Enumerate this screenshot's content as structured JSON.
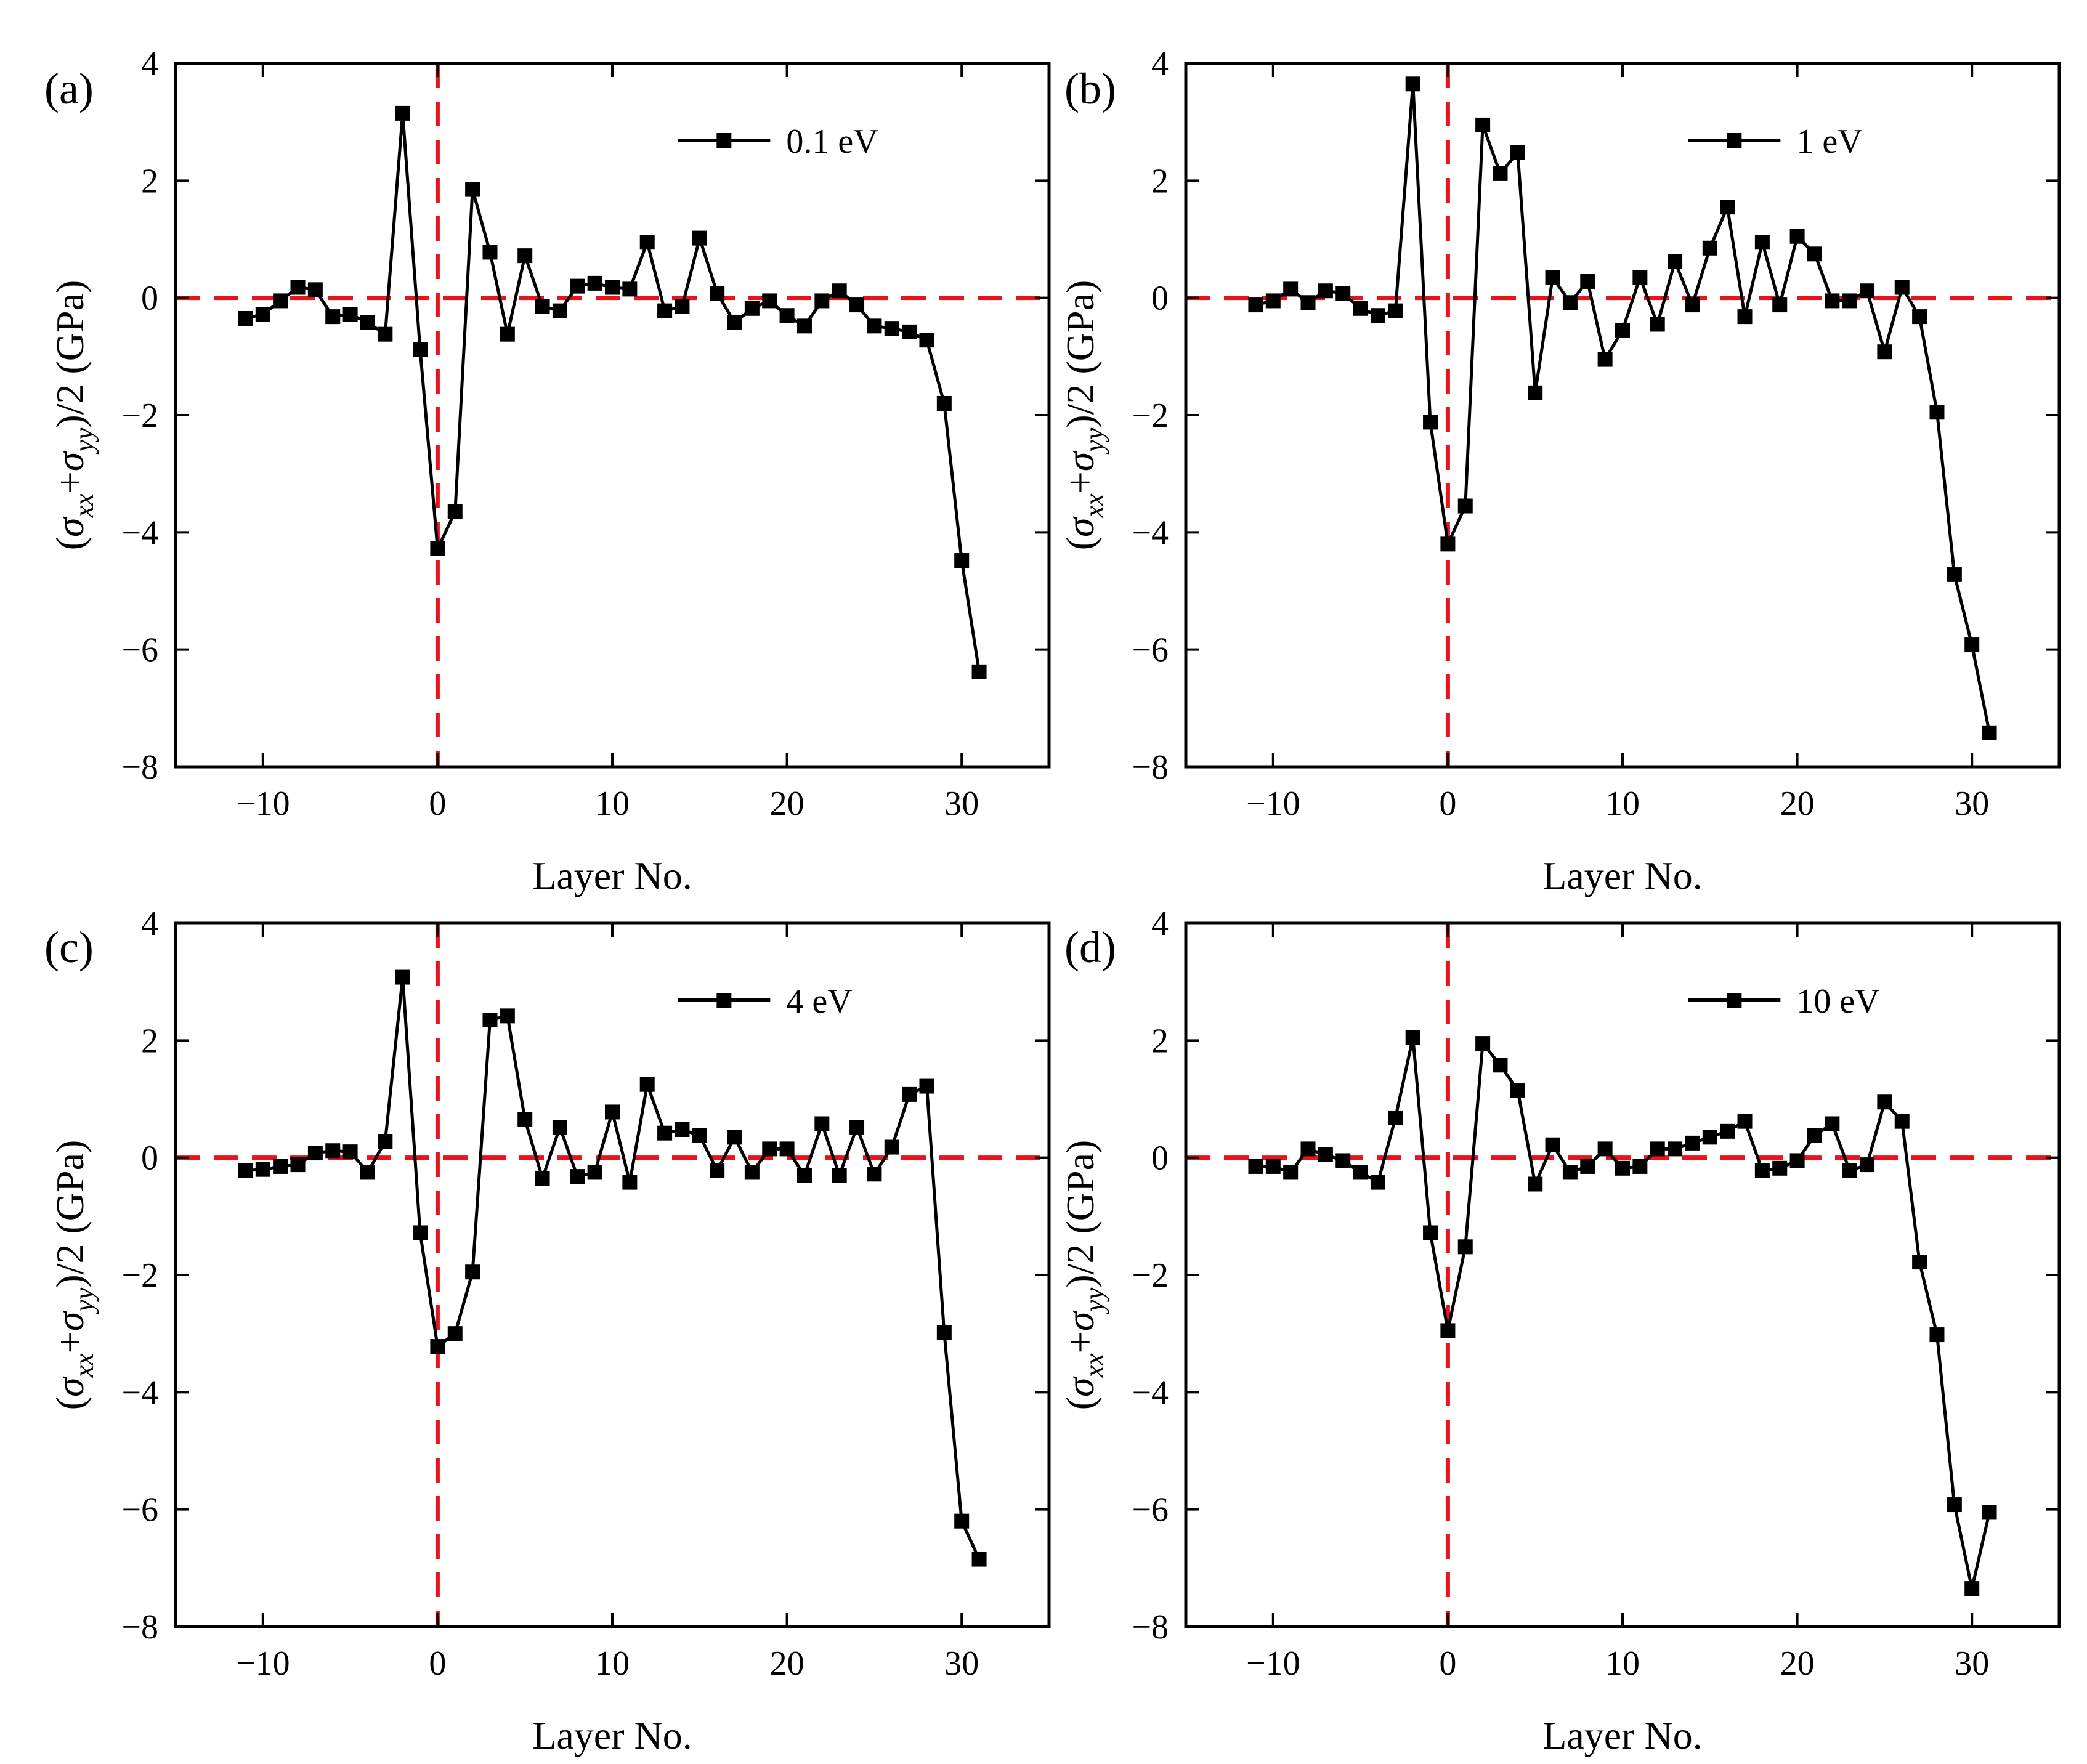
{
  "chart_data": [
    {
      "type": "line",
      "panel_label": "(a)",
      "xlabel": "Layer No.",
      "ylabel": {
        "prefix": "(",
        "sigma1": "σ",
        "sub1": "xx",
        "plus": "+",
        "sigma2": "σ",
        "sub2": "yy",
        "suffix": ")/2 (GPa)"
      },
      "xlim": [
        -15,
        35
      ],
      "ylim": [
        -8,
        4
      ],
      "xticks": [
        -10,
        0,
        10,
        20,
        30
      ],
      "yticks": [
        -8,
        -6,
        -4,
        -2,
        0,
        2,
        4
      ],
      "reference_lines": {
        "y": 0,
        "x": 0,
        "color": "#e8141b",
        "style": "dashed"
      },
      "legend_position": "top-right",
      "series": [
        {
          "name": "0.1 eV",
          "color": "#000000",
          "marker": "square",
          "x": [
            -11,
            -10,
            -9,
            -8,
            -7,
            -6,
            -5,
            -4,
            -3,
            -2,
            -1,
            0,
            1,
            2,
            3,
            4,
            5,
            6,
            7,
            8,
            9,
            10,
            11,
            12,
            13,
            14,
            15,
            16,
            17,
            18,
            19,
            20,
            21,
            22,
            23,
            24,
            25,
            26,
            27,
            28,
            29,
            30,
            31
          ],
          "y": [
            -0.35,
            -0.28,
            -0.05,
            0.18,
            0.14,
            -0.32,
            -0.28,
            -0.42,
            -0.62,
            3.15,
            -0.88,
            -4.28,
            -3.65,
            1.85,
            0.78,
            -0.62,
            0.72,
            -0.15,
            -0.22,
            0.2,
            0.25,
            0.18,
            0.15,
            0.95,
            -0.22,
            -0.15,
            1.02,
            0.08,
            -0.42,
            -0.18,
            -0.05,
            -0.3,
            -0.48,
            -0.05,
            0.12,
            -0.12,
            -0.48,
            -0.52,
            -0.58,
            -0.72,
            -1.8,
            -4.48,
            -6.38
          ]
        }
      ]
    },
    {
      "type": "line",
      "panel_label": "(b)",
      "xlabel": "Layer No.",
      "ylabel": {
        "prefix": "(",
        "sigma1": "σ",
        "sub1": "xx",
        "plus": "+",
        "sigma2": "σ",
        "sub2": "yy",
        "suffix": ")/2 (GPa)"
      },
      "xlim": [
        -15,
        35
      ],
      "ylim": [
        -8,
        4
      ],
      "xticks": [
        -10,
        0,
        10,
        20,
        30
      ],
      "yticks": [
        -8,
        -6,
        -4,
        -2,
        0,
        2,
        4
      ],
      "reference_lines": {
        "y": 0,
        "x": 0,
        "color": "#e8141b",
        "style": "dashed"
      },
      "legend_position": "top-right",
      "series": [
        {
          "name": "1 eV",
          "color": "#000000",
          "marker": "square",
          "x": [
            -11,
            -10,
            -9,
            -8,
            -7,
            -6,
            -5,
            -4,
            -3,
            -2,
            -1,
            0,
            1,
            2,
            3,
            4,
            5,
            6,
            7,
            8,
            9,
            10,
            11,
            12,
            13,
            14,
            15,
            16,
            17,
            18,
            19,
            20,
            21,
            22,
            23,
            24,
            25,
            26,
            27,
            28,
            29,
            30,
            31
          ],
          "y": [
            -0.12,
            -0.05,
            0.15,
            -0.08,
            0.12,
            0.08,
            -0.18,
            -0.3,
            -0.22,
            3.65,
            -2.12,
            -4.2,
            -3.55,
            2.95,
            2.12,
            2.48,
            -1.62,
            0.35,
            -0.08,
            0.28,
            -1.05,
            -0.55,
            0.35,
            -0.45,
            0.62,
            -0.12,
            0.85,
            1.55,
            -0.32,
            0.95,
            -0.12,
            1.05,
            0.75,
            -0.05,
            -0.05,
            0.12,
            -0.92,
            0.18,
            -0.32,
            -1.95,
            -4.72,
            -5.92,
            -7.42
          ]
        }
      ]
    },
    {
      "type": "line",
      "panel_label": "(c)",
      "xlabel": "Layer No.",
      "ylabel": {
        "prefix": "(",
        "sigma1": "σ",
        "sub1": "xx",
        "plus": "+",
        "sigma2": "σ",
        "sub2": "yy",
        "suffix": ")/2 (GPa)"
      },
      "xlim": [
        -15,
        35
      ],
      "ylim": [
        -8,
        4
      ],
      "xticks": [
        -10,
        0,
        10,
        20,
        30
      ],
      "yticks": [
        -8,
        -6,
        -4,
        -2,
        0,
        2,
        4
      ],
      "reference_lines": {
        "y": 0,
        "x": 0,
        "color": "#e8141b",
        "style": "dashed"
      },
      "legend_position": "top-right",
      "series": [
        {
          "name": "4 eV",
          "color": "#000000",
          "marker": "square",
          "x": [
            -11,
            -10,
            -9,
            -8,
            -7,
            -6,
            -5,
            -4,
            -3,
            -2,
            -1,
            0,
            1,
            2,
            3,
            4,
            5,
            6,
            7,
            8,
            9,
            10,
            11,
            12,
            13,
            14,
            15,
            16,
            17,
            18,
            19,
            20,
            21,
            22,
            23,
            24,
            25,
            26,
            27,
            28,
            29,
            30,
            31
          ],
          "y": [
            -0.22,
            -0.2,
            -0.15,
            -0.12,
            0.08,
            0.12,
            0.1,
            -0.25,
            0.28,
            3.08,
            -1.28,
            -3.22,
            -3.0,
            -1.95,
            2.35,
            2.42,
            0.65,
            -0.35,
            0.52,
            -0.32,
            -0.25,
            0.78,
            -0.42,
            1.25,
            0.42,
            0.48,
            0.38,
            -0.22,
            0.35,
            -0.25,
            0.15,
            0.15,
            -0.3,
            0.58,
            -0.3,
            0.52,
            -0.28,
            0.18,
            1.08,
            1.22,
            -2.98,
            -6.2,
            -6.85
          ]
        }
      ]
    },
    {
      "type": "line",
      "panel_label": "(d)",
      "xlabel": "Layer No.",
      "ylabel": {
        "prefix": "(",
        "sigma1": "σ",
        "sub1": "xx",
        "plus": "+",
        "sigma2": "σ",
        "sub2": "yy",
        "suffix": ")/2 (GPa)"
      },
      "xlim": [
        -15,
        35
      ],
      "ylim": [
        -8,
        4
      ],
      "xticks": [
        -10,
        0,
        10,
        20,
        30
      ],
      "yticks": [
        -8,
        -6,
        -4,
        -2,
        0,
        2,
        4
      ],
      "reference_lines": {
        "y": 0,
        "x": 0,
        "color": "#e8141b",
        "style": "dashed"
      },
      "legend_position": "top-right",
      "series": [
        {
          "name": "10 eV",
          "color": "#000000",
          "marker": "square",
          "x": [
            -11,
            -10,
            -9,
            -8,
            -7,
            -6,
            -5,
            -4,
            -3,
            -2,
            -1,
            0,
            1,
            2,
            3,
            4,
            5,
            6,
            7,
            8,
            9,
            10,
            11,
            12,
            13,
            14,
            15,
            16,
            17,
            18,
            19,
            20,
            21,
            22,
            23,
            24,
            25,
            26,
            27,
            28,
            29,
            30,
            31
          ],
          "y": [
            -0.15,
            -0.15,
            -0.25,
            0.15,
            0.05,
            -0.05,
            -0.25,
            -0.42,
            0.68,
            2.05,
            -1.28,
            -2.95,
            -1.52,
            1.95,
            1.58,
            1.15,
            -0.45,
            0.22,
            -0.25,
            -0.15,
            0.15,
            -0.18,
            -0.15,
            0.15,
            0.15,
            0.25,
            0.35,
            0.45,
            0.62,
            -0.22,
            -0.18,
            -0.05,
            0.38,
            0.58,
            -0.22,
            -0.12,
            0.95,
            0.62,
            -1.78,
            -3.02,
            -5.92,
            -7.35,
            -6.05
          ]
        }
      ]
    }
  ]
}
